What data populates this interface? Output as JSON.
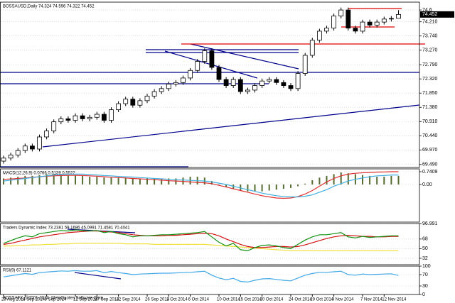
{
  "chart_data": [
    {
      "type": "candlestick",
      "title": "BOSSAUSD,Daily 74.324 74.596 74.322 74.452",
      "categories": [
        "29 Aug 2014",
        null,
        null,
        "3 Sep 2014",
        null,
        null,
        "8 Sep 2014",
        null,
        null,
        null,
        "12 Sep 2014",
        null,
        null,
        "17 Sep 2014",
        null,
        null,
        "22 Sep 2014",
        null,
        null,
        null,
        "26 Sep 2014",
        null,
        null,
        "1 Oct 2014",
        null,
        null,
        "6 Oct 2014",
        null,
        null,
        null,
        "10 Oct 2014",
        null,
        null,
        "15 Oct 2014",
        null,
        null,
        "20 Oct 2014",
        null,
        null,
        null,
        "24 Oct 2014",
        null,
        null,
        "29 Oct 2014",
        null,
        null,
        "3 Nov 2014",
        null,
        null,
        null,
        "7 Nov 2014",
        null,
        null,
        "12 Nov 2014",
        null,
        null
      ],
      "open": [
        69.6,
        69.7,
        69.8,
        69.95,
        70.1,
        70.0,
        70.4,
        70.6,
        70.9,
        71.0,
        70.95,
        71.1,
        71.0,
        71.05,
        71.15,
        70.95,
        71.3,
        71.5,
        71.65,
        71.45,
        71.6,
        71.75,
        71.9,
        72.0,
        72.15,
        72.2,
        72.35,
        72.6,
        72.9,
        73.25,
        72.7,
        72.3,
        72.1,
        72.3,
        71.9,
        71.95,
        72.1,
        72.25,
        72.3,
        72.2,
        72.1,
        72.0,
        72.5,
        73.1,
        73.6,
        73.9,
        74.0,
        74.4,
        74.6,
        74.0,
        73.9,
        74.2,
        74.1,
        74.2,
        74.3,
        74.324
      ],
      "high": [
        69.78,
        69.88,
        70.03,
        70.18,
        70.18,
        70.48,
        70.68,
        70.98,
        71.08,
        71.08,
        71.18,
        71.18,
        71.13,
        71.23,
        71.23,
        71.38,
        71.58,
        71.73,
        71.73,
        71.68,
        71.83,
        71.98,
        72.08,
        72.23,
        72.28,
        72.43,
        72.68,
        72.98,
        73.33,
        73.33,
        72.78,
        72.38,
        72.38,
        72.38,
        72.03,
        72.18,
        72.33,
        72.38,
        72.38,
        72.28,
        72.18,
        72.58,
        73.18,
        73.68,
        73.98,
        74.08,
        74.48,
        74.68,
        74.68,
        74.08,
        74.28,
        74.28,
        74.28,
        74.38,
        74.4,
        74.596
      ],
      "low": [
        69.52,
        69.62,
        69.72,
        69.87,
        69.92,
        69.92,
        70.32,
        70.52,
        70.82,
        70.87,
        70.87,
        70.92,
        70.92,
        70.97,
        70.87,
        70.87,
        71.22,
        71.42,
        71.37,
        71.37,
        71.52,
        71.67,
        71.82,
        71.92,
        72.07,
        72.12,
        72.27,
        72.52,
        72.82,
        72.62,
        72.22,
        72.02,
        72.02,
        71.82,
        71.82,
        71.87,
        72.02,
        72.17,
        72.12,
        72.02,
        71.92,
        71.92,
        72.42,
        73.02,
        73.52,
        73.82,
        73.92,
        74.32,
        73.92,
        73.82,
        73.82,
        74.02,
        74.02,
        74.12,
        74.22,
        74.322
      ],
      "close": [
        69.7,
        69.8,
        69.95,
        70.1,
        70.0,
        70.4,
        70.6,
        70.9,
        71.0,
        70.95,
        71.1,
        71.0,
        71.05,
        71.15,
        70.95,
        71.3,
        71.5,
        71.65,
        71.45,
        71.6,
        71.75,
        71.9,
        72.0,
        72.15,
        72.2,
        72.35,
        72.6,
        72.9,
        73.25,
        72.7,
        72.3,
        72.1,
        72.3,
        71.9,
        71.95,
        72.1,
        72.25,
        72.3,
        72.2,
        72.1,
        72.0,
        72.5,
        73.1,
        73.6,
        73.9,
        74.0,
        74.4,
        74.6,
        74.0,
        73.9,
        74.2,
        74.1,
        74.2,
        74.3,
        74.32,
        74.452
      ],
      "up_color": "#ffffff",
      "down_color": "#000000",
      "ylim": [
        69.39,
        74.86
      ],
      "yticks": [
        74.6,
        {
          "value": 74.21,
          "label": "74.210"
        },
        {
          "value": 73.74,
          "label": "73.740"
        },
        {
          "value": 73.27,
          "label": "73.270"
        },
        {
          "value": 72.79,
          "label": "72.790"
        },
        {
          "value": 72.32,
          "label": "72.320"
        },
        {
          "value": 71.85,
          "label": "71.850"
        },
        {
          "value": 71.38,
          "label": "71.380"
        },
        {
          "value": 70.91,
          "label": "70.910"
        },
        {
          "value": 70.44,
          "label": "70.440"
        },
        {
          "value": 69.97,
          "label": "69.970"
        },
        {
          "value": 69.49,
          "label": "69.490"
        }
      ],
      "last_price": 74.452,
      "grid": true
    },
    {
      "type": "macd",
      "title": "MACD(12,26,9) 0.0766 0.5139 0.5522",
      "histogram": {
        "color": "#556b2f",
        "values": [
          0.35,
          0.4,
          0.45,
          0.5,
          0.5,
          0.55,
          0.6,
          0.6,
          0.6,
          0.55,
          0.55,
          0.5,
          0.45,
          0.45,
          0.4,
          0.4,
          0.4,
          0.4,
          0.35,
          0.35,
          0.35,
          0.35,
          0.35,
          0.35,
          0.35,
          0.4,
          0.45,
          0.45,
          0.4,
          0.2,
          0.0,
          -0.15,
          -0.25,
          -0.35,
          -0.4,
          -0.4,
          -0.4,
          -0.35,
          -0.3,
          -0.25,
          -0.2,
          -0.1,
          0.05,
          0.25,
          0.4,
          0.5,
          0.6,
          0.7,
          0.65,
          0.6,
          0.55,
          0.5,
          0.45,
          0.45,
          0.5,
          0.5
        ]
      },
      "series": [
        {
          "color": "#e03030",
          "values": [
            0.3,
            0.32,
            0.35,
            0.38,
            0.42,
            0.45,
            0.48,
            0.5,
            0.52,
            0.53,
            0.53,
            0.52,
            0.5,
            0.48,
            0.45,
            0.42,
            0.4,
            0.38,
            0.35,
            0.33,
            0.3,
            0.28,
            0.25,
            0.22,
            0.2,
            0.18,
            0.15,
            0.12,
            0.1,
            0.05,
            -0.05,
            -0.15,
            -0.25,
            -0.35,
            -0.45,
            -0.55,
            -0.65,
            -0.72,
            -0.78,
            -0.8,
            -0.78,
            -0.7,
            -0.55,
            -0.35,
            -0.1,
            0.15,
            0.35,
            0.5,
            0.6,
            0.65,
            0.68,
            0.7,
            0.72,
            0.73,
            0.74,
            0.74
          ]
        },
        {
          "color": "#40b0e0",
          "values": [
            0.2,
            0.25,
            0.3,
            0.35,
            0.4,
            0.45,
            0.5,
            0.55,
            0.58,
            0.6,
            0.6,
            0.6,
            0.58,
            0.55,
            0.52,
            0.5,
            0.47,
            0.45,
            0.43,
            0.4,
            0.38,
            0.35,
            0.33,
            0.3,
            0.28,
            0.26,
            0.24,
            0.22,
            0.2,
            0.15,
            0.08,
            0.0,
            -0.1,
            -0.2,
            -0.3,
            -0.4,
            -0.5,
            -0.58,
            -0.65,
            -0.7,
            -0.72,
            -0.72,
            -0.68,
            -0.6,
            -0.45,
            -0.3,
            -0.1,
            0.05,
            0.2,
            0.3,
            0.38,
            0.45,
            0.5,
            0.52,
            0.55,
            0.55
          ]
        }
      ],
      "ylim": [
        -2.18,
        0.905
      ],
      "yticks": [
        0.7409,
        {
          "value": 0,
          "label": "0.00"
        }
      ]
    },
    {
      "type": "line",
      "title": "Traders Dynamic Index 73.2381 59.1686 45.0991 71.4581 70.4041",
      "series": [
        {
          "color": "#f0e040",
          "values": [
            55,
            55,
            56,
            56,
            57,
            57,
            58,
            58,
            59,
            59,
            60,
            60,
            60,
            60,
            60,
            60,
            60,
            59,
            59,
            59,
            59,
            58,
            58,
            58,
            58,
            58,
            58,
            58,
            58,
            57,
            56,
            55,
            54,
            53,
            52,
            51,
            50,
            49,
            48,
            47,
            46,
            46,
            46,
            46,
            46,
            46,
            46,
            46,
            46,
            46,
            46,
            46,
            46,
            46,
            46,
            46
          ]
        },
        {
          "color": "#d01010",
          "values": [
            58,
            60,
            63,
            66,
            69,
            72,
            74,
            76,
            78,
            80,
            81,
            82,
            83,
            83,
            82,
            81,
            80,
            78,
            76,
            75,
            74,
            74,
            74,
            75,
            75,
            76,
            77,
            78,
            79,
            78,
            74,
            68,
            63,
            58,
            54,
            52,
            52,
            53,
            54,
            54,
            53,
            54,
            57,
            61,
            65,
            69,
            72,
            74,
            75,
            74,
            73,
            73,
            72,
            72,
            73,
            73
          ]
        },
        {
          "color": "#109010",
          "values": [
            60,
            65,
            70,
            74,
            72,
            78,
            80,
            82,
            84,
            83,
            85,
            84,
            83,
            84,
            80,
            82,
            78,
            76,
            72,
            74,
            74,
            75,
            76,
            76,
            77,
            78,
            79,
            80,
            82,
            72,
            62,
            55,
            60,
            48,
            46,
            52,
            56,
            57,
            55,
            52,
            50,
            58,
            66,
            72,
            76,
            76,
            78,
            80,
            72,
            70,
            73,
            71,
            72,
            73,
            74,
            74
          ]
        }
      ],
      "ylim": [
        20,
        96.991
      ],
      "yticks": [
        96.991,
        68,
        50,
        32
      ]
    },
    {
      "type": "line",
      "title": "RSI(9) 67.1121",
      "series": [
        {
          "color": "#40a8e8",
          "values": [
            62,
            66,
            70,
            74,
            71,
            77,
            79,
            81,
            83,
            82,
            84,
            82,
            82,
            84,
            77,
            81,
            77,
            74,
            70,
            72,
            73,
            74,
            75,
            75,
            76,
            77,
            78,
            80,
            82,
            68,
            58,
            52,
            57,
            46,
            44,
            50,
            55,
            56,
            53,
            50,
            48,
            58,
            68,
            74,
            78,
            78,
            80,
            82,
            70,
            68,
            72,
            70,
            71,
            72,
            73,
            67.1121
          ]
        }
      ],
      "ylim": [
        0,
        100
      ],
      "yticks": [
        100,
        70,
        30,
        0
      ]
    }
  ],
  "footer": "BOSSAFX, ©2001-2014, MetaQuotes Software Corp."
}
